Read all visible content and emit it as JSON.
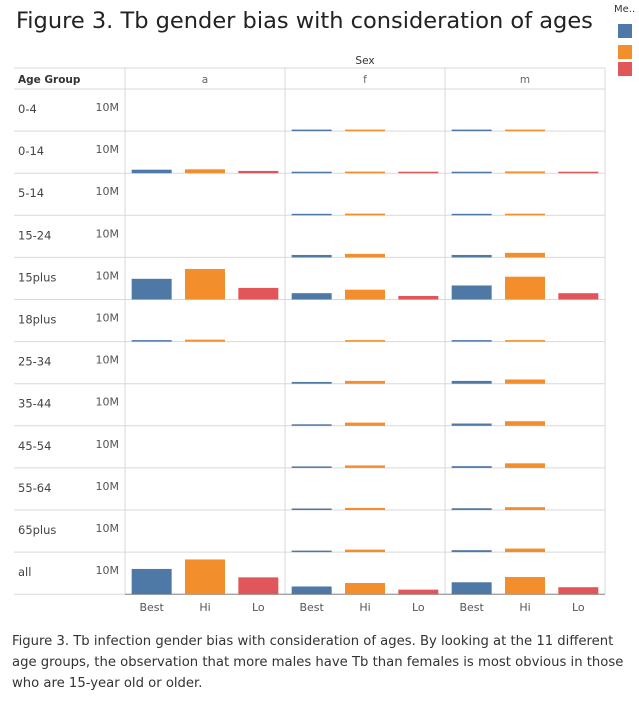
{
  "title": "Figure 3. Tb gender bias with consideration of ages",
  "legend": {
    "title": "Me..",
    "items": [
      {
        "name": "Best",
        "color": "#4e79a7"
      },
      {
        "name": "Hi",
        "color": "#f28e2b"
      },
      {
        "name": "Lo",
        "color": "#e15759"
      }
    ]
  },
  "caption": "Figure 3. Tb infection gender bias with consideration of ages. By looking at the 11 different age groups, the observation that more males have Tb than females is most obvious in those who are 15-year old or older.",
  "chart_data": {
    "type": "bar",
    "title": "Figure 3. Tb gender bias with consideration of ages",
    "column_header": "Sex",
    "row_header": "Age Group",
    "columns": [
      "a",
      "f",
      "m"
    ],
    "rows": [
      "0-4",
      "0-14",
      "5-14",
      "15-24",
      "15plus",
      "18plus",
      "25-34",
      "35-44",
      "45-54",
      "55-64",
      "65plus",
      "all"
    ],
    "categories": [
      "Best",
      "Hi",
      "Lo"
    ],
    "ytick_label": "10M",
    "ytick_value": 10000000,
    "ylim": [
      0,
      12000000
    ],
    "values": {
      "0-4": {
        "a": [
          null,
          null,
          null
        ],
        "f": [
          350000,
          340000,
          null
        ],
        "m": [
          380000,
          370000,
          null
        ]
      },
      "0-14": {
        "a": [
          1000000,
          1100000,
          650000
        ],
        "f": [
          380000,
          460000,
          300000
        ],
        "m": [
          420000,
          500000,
          320000
        ]
      },
      "5-14": {
        "a": [
          null,
          null,
          null
        ],
        "f": [
          380000,
          480000,
          null
        ],
        "m": [
          390000,
          460000,
          null
        ]
      },
      "15-24": {
        "a": [
          null,
          null,
          null
        ],
        "f": [
          700000,
          1000000,
          null
        ],
        "m": [
          700000,
          1300000,
          null
        ]
      },
      "15plus": {
        "a": [
          5900000,
          8700000,
          3300000
        ],
        "f": [
          1800000,
          2800000,
          1000000
        ],
        "m": [
          4000000,
          6500000,
          1800000
        ]
      },
      "18plus": {
        "a": [
          350000,
          550000,
          null
        ],
        "f": [
          null,
          350000,
          null
        ],
        "m": [
          400000,
          400000,
          null
        ]
      },
      "25-34": {
        "a": [
          null,
          null,
          null
        ],
        "f": [
          500000,
          800000,
          null
        ],
        "m": [
          800000,
          1200000,
          null
        ]
      },
      "35-44": {
        "a": [
          null,
          null,
          null
        ],
        "f": [
          350000,
          900000,
          null
        ],
        "m": [
          650000,
          1300000,
          null
        ]
      },
      "45-54": {
        "a": [
          null,
          null,
          null
        ],
        "f": [
          400000,
          700000,
          null
        ],
        "m": [
          500000,
          1300000,
          null
        ]
      },
      "55-64": {
        "a": [
          null,
          null,
          null
        ],
        "f": [
          300000,
          600000,
          null
        ],
        "m": [
          500000,
          800000,
          null
        ]
      },
      "65plus": {
        "a": [
          null,
          null,
          null
        ],
        "f": [
          350000,
          700000,
          null
        ],
        "m": [
          550000,
          1000000,
          null
        ]
      },
      "all": {
        "a": [
          7200000,
          9900000,
          4800000
        ],
        "f": [
          2200000,
          3200000,
          1300000
        ],
        "m": [
          3400000,
          4900000,
          2000000
        ]
      }
    }
  }
}
